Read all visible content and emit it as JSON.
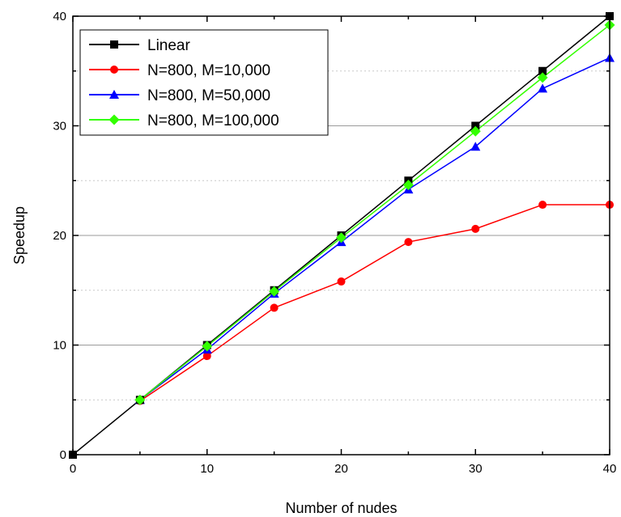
{
  "chart_data": {
    "type": "line",
    "title": "",
    "xlabel": "Number of nudes",
    "ylabel": "Speedup",
    "xlim": [
      0,
      40
    ],
    "ylim": [
      0,
      40
    ],
    "x_ticks": [
      0,
      10,
      20,
      30,
      40
    ],
    "y_ticks": [
      0,
      10,
      20,
      30,
      40
    ],
    "grid": "horizontal major solid, minor dotted",
    "legend_position": "top-left",
    "series": [
      {
        "name": "Linear",
        "color": "#000000",
        "marker": "square",
        "x": [
          0,
          5,
          10,
          15,
          20,
          25,
          30,
          35,
          40
        ],
        "y": [
          0,
          5,
          10,
          15,
          20,
          25,
          30,
          35,
          40
        ]
      },
      {
        "name": "N=800, M=10,000",
        "color": "#ff0000",
        "marker": "circle",
        "x": [
          5,
          10,
          15,
          20,
          25,
          30,
          35,
          40
        ],
        "y": [
          4.9,
          9.0,
          13.4,
          15.8,
          19.4,
          20.6,
          22.8,
          22.8
        ]
      },
      {
        "name": "N=800, M=50,000",
        "color": "#0000ff",
        "marker": "triangle",
        "x": [
          5,
          10,
          15,
          20,
          25,
          30,
          35,
          40
        ],
        "y": [
          5.0,
          9.6,
          14.7,
          19.4,
          24.2,
          28.1,
          33.4,
          36.2
        ]
      },
      {
        "name": "N=800, M=100,000",
        "color": "#33ff00",
        "marker": "diamond",
        "x": [
          5,
          10,
          15,
          20,
          25,
          30,
          35,
          40
        ],
        "y": [
          5.0,
          9.9,
          14.9,
          19.8,
          24.6,
          29.5,
          34.4,
          39.2
        ]
      }
    ]
  }
}
